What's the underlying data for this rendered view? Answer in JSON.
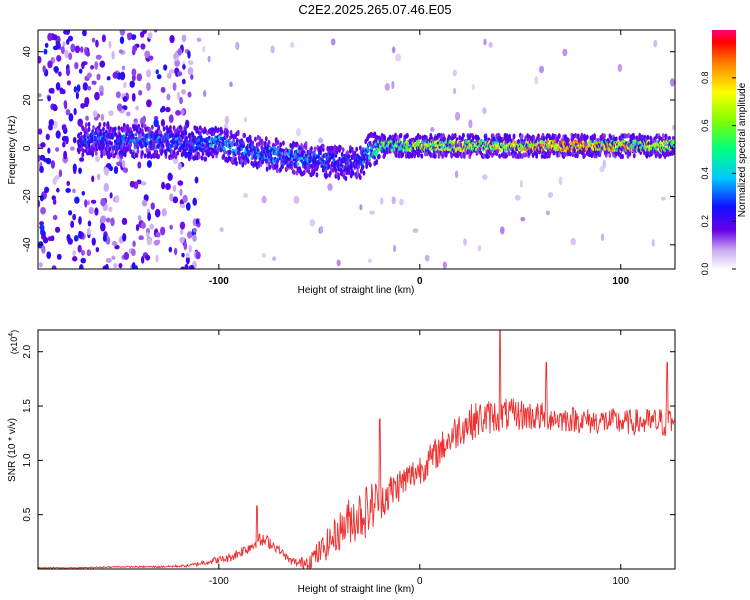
{
  "title": "C2E2.2025.265.07.46.E05",
  "chart_data": [
    {
      "type": "heatmap",
      "xlabel": "Height of straight line (km)",
      "ylabel": "Frequency (Hz)",
      "xlim": [
        -190,
        127
      ],
      "ylim": [
        -50,
        49
      ],
      "xticks": [
        -100,
        0,
        100
      ],
      "xtick_labels": [
        "-100",
        "0",
        "100"
      ],
      "yticks": [
        -40,
        -20,
        0,
        20,
        40
      ],
      "ytick_labels": [
        "-40",
        "-20",
        "0",
        "20",
        "40"
      ],
      "colorbar": {
        "label": "Normalized spectral amplitude",
        "range": [
          0,
          1
        ],
        "ticks": [
          0.0,
          0.2,
          0.4,
          0.6,
          0.8
        ],
        "tick_labels": [
          "0.0",
          "0.2",
          "0.4",
          "0.6",
          "0.8"
        ]
      },
      "ridge": {
        "x": [
          -170,
          -150,
          -130,
          -110,
          -100,
          -90,
          -80,
          -70,
          -60,
          -50,
          -40,
          -30,
          -25,
          -20,
          -10,
          0,
          20,
          40,
          60,
          80,
          100,
          127
        ],
        "frequency": [
          4,
          3,
          3,
          2,
          2,
          0,
          -2,
          -3,
          -4,
          -5,
          -6,
          -6,
          -1,
          1,
          1,
          1,
          1,
          1,
          1,
          1,
          1,
          1
        ],
        "amplitude": [
          0.3,
          0.32,
          0.33,
          0.35,
          0.4,
          0.35,
          0.35,
          0.38,
          0.38,
          0.35,
          0.3,
          0.28,
          0.45,
          0.55,
          0.65,
          0.7,
          0.72,
          0.75,
          0.85,
          0.9,
          0.8,
          0.7
        ]
      },
      "scatter_noise_region": [
        -190,
        -110
      ]
    },
    {
      "type": "line",
      "xlabel": "Height of straight line (km)",
      "ylabel": "SNR (10 * v/v)",
      "multiplier_label": "(x10",
      "multiplier_exp": "4",
      "xlim": [
        -190,
        127
      ],
      "ylim": [
        0.0,
        2.2
      ],
      "xticks": [
        -100,
        0,
        100
      ],
      "xtick_labels": [
        "-100",
        "0",
        "100"
      ],
      "yticks": [
        0.5,
        1.0,
        1.5,
        2.0
      ],
      "ytick_labels": [
        "0.5",
        "1.0",
        "1.5",
        "2.0"
      ],
      "series": [
        {
          "name": "SNR",
          "color": "#ee3030",
          "x": [
            -190,
            -170,
            -150,
            -130,
            -115,
            -105,
            -95,
            -90,
            -85,
            -80,
            -75,
            -70,
            -65,
            -60,
            -55,
            -50,
            -45,
            -40,
            -35,
            -30,
            -25,
            -22,
            -20,
            -15,
            -10,
            -5,
            0,
            5,
            10,
            15,
            20,
            25,
            30,
            35,
            40,
            45,
            50,
            55,
            60,
            65,
            70,
            75,
            80,
            85,
            90,
            95,
            100,
            105,
            110,
            115,
            120,
            125,
            127
          ],
          "values": [
            0.01,
            0.01,
            0.02,
            0.02,
            0.03,
            0.07,
            0.1,
            0.15,
            0.2,
            0.26,
            0.25,
            0.18,
            0.08,
            0.05,
            0.08,
            0.15,
            0.25,
            0.35,
            0.45,
            0.5,
            0.55,
            0.62,
            0.65,
            0.7,
            0.78,
            0.85,
            0.92,
            1.0,
            1.1,
            1.2,
            1.3,
            1.35,
            1.38,
            1.4,
            1.42,
            1.42,
            1.42,
            1.41,
            1.4,
            1.4,
            1.38,
            1.38,
            1.37,
            1.36,
            1.36,
            1.36,
            1.35,
            1.35,
            1.35,
            1.35,
            1.35,
            1.35,
            1.35
          ],
          "noise": [
            0.005,
            0.005,
            0.006,
            0.008,
            0.012,
            0.03,
            0.04,
            0.05,
            0.06,
            0.07,
            0.06,
            0.04,
            0.03,
            0.05,
            0.08,
            0.12,
            0.15,
            0.18,
            0.22,
            0.25,
            0.25,
            0.22,
            0.2,
            0.18,
            0.16,
            0.15,
            0.15,
            0.15,
            0.15,
            0.16,
            0.17,
            0.17,
            0.17,
            0.16,
            0.16,
            0.15,
            0.15,
            0.14,
            0.14,
            0.13,
            0.12,
            0.12,
            0.12,
            0.12,
            0.12,
            0.12,
            0.12,
            0.12,
            0.13,
            0.13,
            0.14,
            0.15,
            0.15
          ]
        }
      ],
      "peaks": [
        {
          "x": -81,
          "y": 0.58
        },
        {
          "x": -20,
          "y": 1.38
        },
        {
          "x": 40,
          "y": 2.2
        },
        {
          "x": 63,
          "y": 1.9
        },
        {
          "x": 123,
          "y": 1.9
        }
      ]
    }
  ]
}
